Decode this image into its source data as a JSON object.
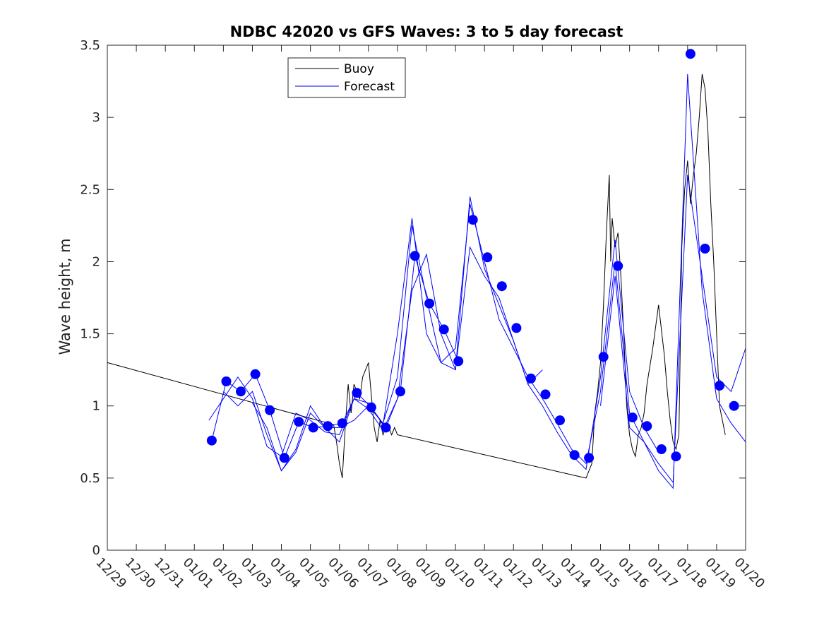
{
  "chart_data": {
    "type": "line",
    "title": "NDBC 42020 vs GFS Waves: 3 to 5 day forecast",
    "xlabel": "",
    "ylabel": "Wave height, m",
    "ylim": [
      0,
      3.5
    ],
    "xlim": [
      0,
      22
    ],
    "yticks": [
      "0",
      "0.5",
      "1",
      "1.5",
      "2",
      "2.5",
      "3",
      "3.5"
    ],
    "categories": [
      "12/29",
      "12/30",
      "12/31",
      "01/01",
      "01/02",
      "01/03",
      "01/04",
      "01/05",
      "01/06",
      "01/07",
      "01/08",
      "01/09",
      "01/10",
      "01/11",
      "01/12",
      "01/13",
      "01/14",
      "01/15",
      "01/16",
      "01/17",
      "01/18",
      "01/19",
      "01/20"
    ],
    "legend": {
      "placement": "top-center",
      "entries": [
        {
          "name": "Buoy",
          "color": "#000000"
        },
        {
          "name": "Forecast",
          "color": "#0000ff"
        }
      ]
    },
    "series": [
      {
        "name": "Buoy",
        "color": "#000000",
        "x": [
          0,
          7.8,
          7.9,
          8.0,
          8.1,
          8.2,
          8.3,
          8.4,
          8.5,
          8.6,
          8.7,
          8.8,
          9.0,
          9.2,
          9.3,
          9.4,
          9.5,
          9.6,
          9.7,
          9.8,
          9.9,
          10.0,
          16.5,
          16.7,
          16.8,
          16.9,
          17.0,
          17.1,
          17.2,
          17.3,
          17.35,
          17.4,
          17.5,
          17.6,
          17.7,
          17.8,
          17.9,
          18.0,
          18.1,
          18.2,
          18.3,
          18.4,
          18.5,
          18.6,
          18.8,
          19.0,
          19.2,
          19.3,
          19.4,
          19.5,
          19.6,
          19.7,
          19.8,
          19.9,
          20.0,
          20.1,
          20.2,
          20.3,
          20.4,
          20.5,
          20.6,
          20.7,
          20.8,
          20.9,
          21.0,
          21.1,
          21.2,
          21.3
        ],
        "y": [
          1.3,
          0.87,
          0.75,
          0.6,
          0.5,
          0.85,
          1.15,
          0.95,
          1.15,
          1.1,
          1.05,
          1.2,
          1.3,
          0.85,
          0.75,
          0.9,
          0.8,
          0.85,
          0.85,
          0.8,
          0.85,
          0.8,
          0.5,
          0.6,
          0.95,
          1.1,
          1.3,
          1.7,
          2.2,
          2.6,
          2.0,
          2.3,
          2.1,
          2.2,
          1.9,
          1.5,
          1.0,
          0.8,
          0.7,
          0.65,
          0.8,
          0.85,
          0.95,
          1.15,
          1.4,
          1.7,
          1.35,
          1.1,
          0.9,
          0.75,
          0.7,
          0.8,
          2.1,
          2.5,
          2.7,
          2.4,
          2.6,
          2.75,
          3.0,
          3.3,
          3.2,
          2.9,
          2.4,
          2.0,
          1.5,
          1.0,
          0.9,
          0.8
        ]
      },
      {
        "name": "Forecast",
        "color": "#0000ff",
        "points": {
          "x": [
            3.6,
            4.1,
            4.6,
            5.1,
            5.6,
            6.1,
            6.6,
            7.1,
            7.6,
            8.1,
            8.6,
            9.1,
            9.6,
            10.1,
            10.6,
            11.1,
            11.6,
            12.1,
            12.6,
            13.1,
            13.6,
            14.1,
            14.6,
            15.1,
            15.6,
            16.1,
            16.6,
            17.1,
            17.6,
            18.1,
            18.6,
            19.1,
            19.6,
            20.1,
            20.6,
            21.1,
            21.6
          ],
          "y": [
            0.76,
            1.17,
            1.1,
            1.22,
            0.97,
            0.64,
            0.89,
            0.85,
            0.86,
            0.88,
            1.09,
            0.99,
            0.85,
            1.1,
            2.04,
            1.71,
            1.53,
            1.31,
            2.29,
            2.03,
            1.83,
            1.54,
            1.19,
            1.08,
            0.9,
            0.66,
            0.64,
            1.34,
            1.97,
            0.92,
            0.86,
            0.7,
            0.65,
            3.44,
            2.09,
            1.14,
            1.0
          ]
        },
        "runs": [
          {
            "x": [
              3.6,
              4.1,
              4.6,
              5.1,
              5.6,
              6.1,
              6.6,
              7.1,
              7.6,
              8.1,
              8.6,
              9.1,
              9.6,
              10.1,
              10.6,
              11.1,
              11.6,
              12.1
            ],
            "y": [
              0.76,
              1.17,
              1.1,
              1.22,
              0.97,
              0.64,
              0.89,
              0.85,
              0.86,
              0.88,
              1.09,
              0.99,
              0.85,
              1.1,
              2.04,
              1.71,
              1.53,
              1.31
            ]
          },
          {
            "x": [
              3.5,
              4.0,
              4.5,
              5.0,
              5.5,
              6.0,
              6.5,
              7.0,
              7.5,
              8.0,
              8.5,
              9.0,
              9.5,
              10.0,
              10.5,
              11.0,
              11.5,
              12.0,
              12.5,
              13.0,
              13.5,
              14.0,
              14.5,
              15.0
            ],
            "y": [
              0.9,
              1.05,
              1.2,
              1.05,
              0.72,
              0.65,
              0.95,
              0.9,
              0.82,
              0.8,
              1.05,
              0.98,
              0.83,
              1.05,
              1.8,
              2.05,
              1.5,
              1.25,
              2.1,
              1.9,
              1.75,
              1.45,
              1.15,
              1.25
            ]
          },
          {
            "x": [
              4.0,
              4.5,
              5.0,
              5.5,
              6.0,
              6.5,
              7.0,
              7.5,
              8.0,
              8.5,
              9.0,
              9.5,
              10.0,
              10.5,
              11.0,
              11.5,
              12.0,
              12.5,
              13.0,
              13.5,
              14.0,
              14.5,
              15.0,
              15.5,
              16.0,
              16.5,
              17.0,
              17.5,
              18.0,
              18.5,
              19.0
            ],
            "y": [
              1.1,
              1.0,
              1.1,
              0.8,
              0.55,
              0.7,
              1.0,
              0.85,
              0.85,
              0.9,
              1.0,
              0.88,
              1.2,
              2.25,
              1.75,
              1.3,
              1.25,
              2.45,
              1.95,
              1.7,
              1.45,
              1.15,
              1.0,
              0.82,
              0.66,
              0.56,
              1.2,
              2.15,
              1.1,
              0.85,
              0.68
            ]
          },
          {
            "x": [
              5.0,
              5.5,
              6.0,
              6.5,
              7.0,
              7.5,
              8.0,
              8.5,
              9.0,
              9.5,
              10.0,
              10.5,
              11.0,
              11.5,
              12.0,
              12.5,
              13.0,
              13.5,
              14.0,
              14.5,
              15.0,
              15.5,
              16.0,
              16.5,
              17.0,
              17.5,
              18.0,
              18.5,
              19.0,
              19.5,
              20.0,
              20.5,
              21.0,
              21.5,
              22.0
            ],
            "y": [
              1.02,
              0.85,
              0.55,
              0.68,
              0.95,
              0.85,
              0.75,
              1.05,
              1.02,
              0.87,
              1.5,
              2.3,
              1.5,
              1.3,
              1.4,
              2.4,
              2.0,
              1.6,
              1.4,
              1.2,
              1.05,
              0.88,
              0.7,
              0.6,
              1.1,
              2.0,
              0.95,
              0.75,
              0.6,
              0.47,
              2.6,
              1.9,
              1.2,
              1.1,
              1.4
            ]
          },
          {
            "x": [
              17.0,
              17.5,
              18.0,
              18.5,
              19.0,
              19.5,
              20.0,
              20.5,
              21.0,
              21.5,
              22.0
            ],
            "y": [
              1.0,
              1.9,
              0.85,
              0.75,
              0.55,
              0.43,
              3.3,
              1.8,
              1.05,
              0.88,
              0.75
            ]
          }
        ]
      }
    ]
  }
}
